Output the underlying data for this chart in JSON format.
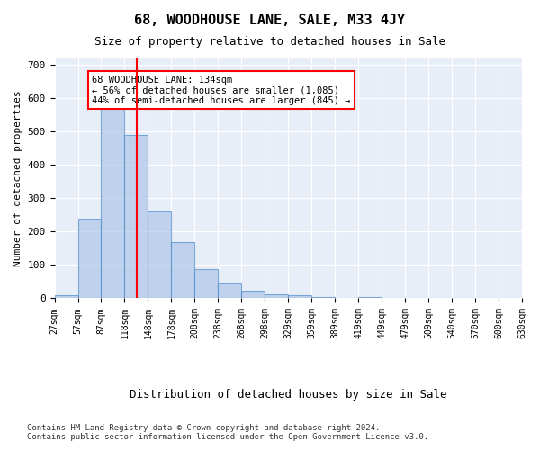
{
  "title": "68, WOODHOUSE LANE, SALE, M33 4JY",
  "subtitle": "Size of property relative to detached houses in Sale",
  "xlabel": "Distribution of detached houses by size in Sale",
  "ylabel": "Number of detached properties",
  "bin_labels": [
    "27sqm",
    "57sqm",
    "87sqm",
    "118sqm",
    "148sqm",
    "178sqm",
    "208sqm",
    "238sqm",
    "268sqm",
    "298sqm",
    "329sqm",
    "359sqm",
    "389sqm",
    "419sqm",
    "449sqm",
    "479sqm",
    "509sqm",
    "540sqm",
    "570sqm",
    "600sqm",
    "630sqm"
  ],
  "bar_values": [
    10,
    240,
    575,
    490,
    260,
    170,
    88,
    48,
    22,
    12,
    10,
    5,
    0,
    5,
    0,
    0,
    0,
    0,
    0,
    0
  ],
  "bar_color": "#aec6e8",
  "bar_edge_color": "#4f8fcc",
  "bar_alpha": 0.7,
  "red_line_x": 4.1,
  "annotation_text": "68 WOODHOUSE LANE: 134sqm\n← 56% of detached houses are smaller (1,085)\n44% of semi-detached houses are larger (845) →",
  "annotation_box_color": "white",
  "annotation_box_edge": "red",
  "ylim": [
    0,
    720
  ],
  "yticks": [
    0,
    100,
    200,
    300,
    400,
    500,
    600,
    700
  ],
  "background_color": "#e8eef8",
  "grid_color": "white",
  "footnote": "Contains HM Land Registry data © Crown copyright and database right 2024.\nContains public sector information licensed under the Open Government Licence v3.0."
}
